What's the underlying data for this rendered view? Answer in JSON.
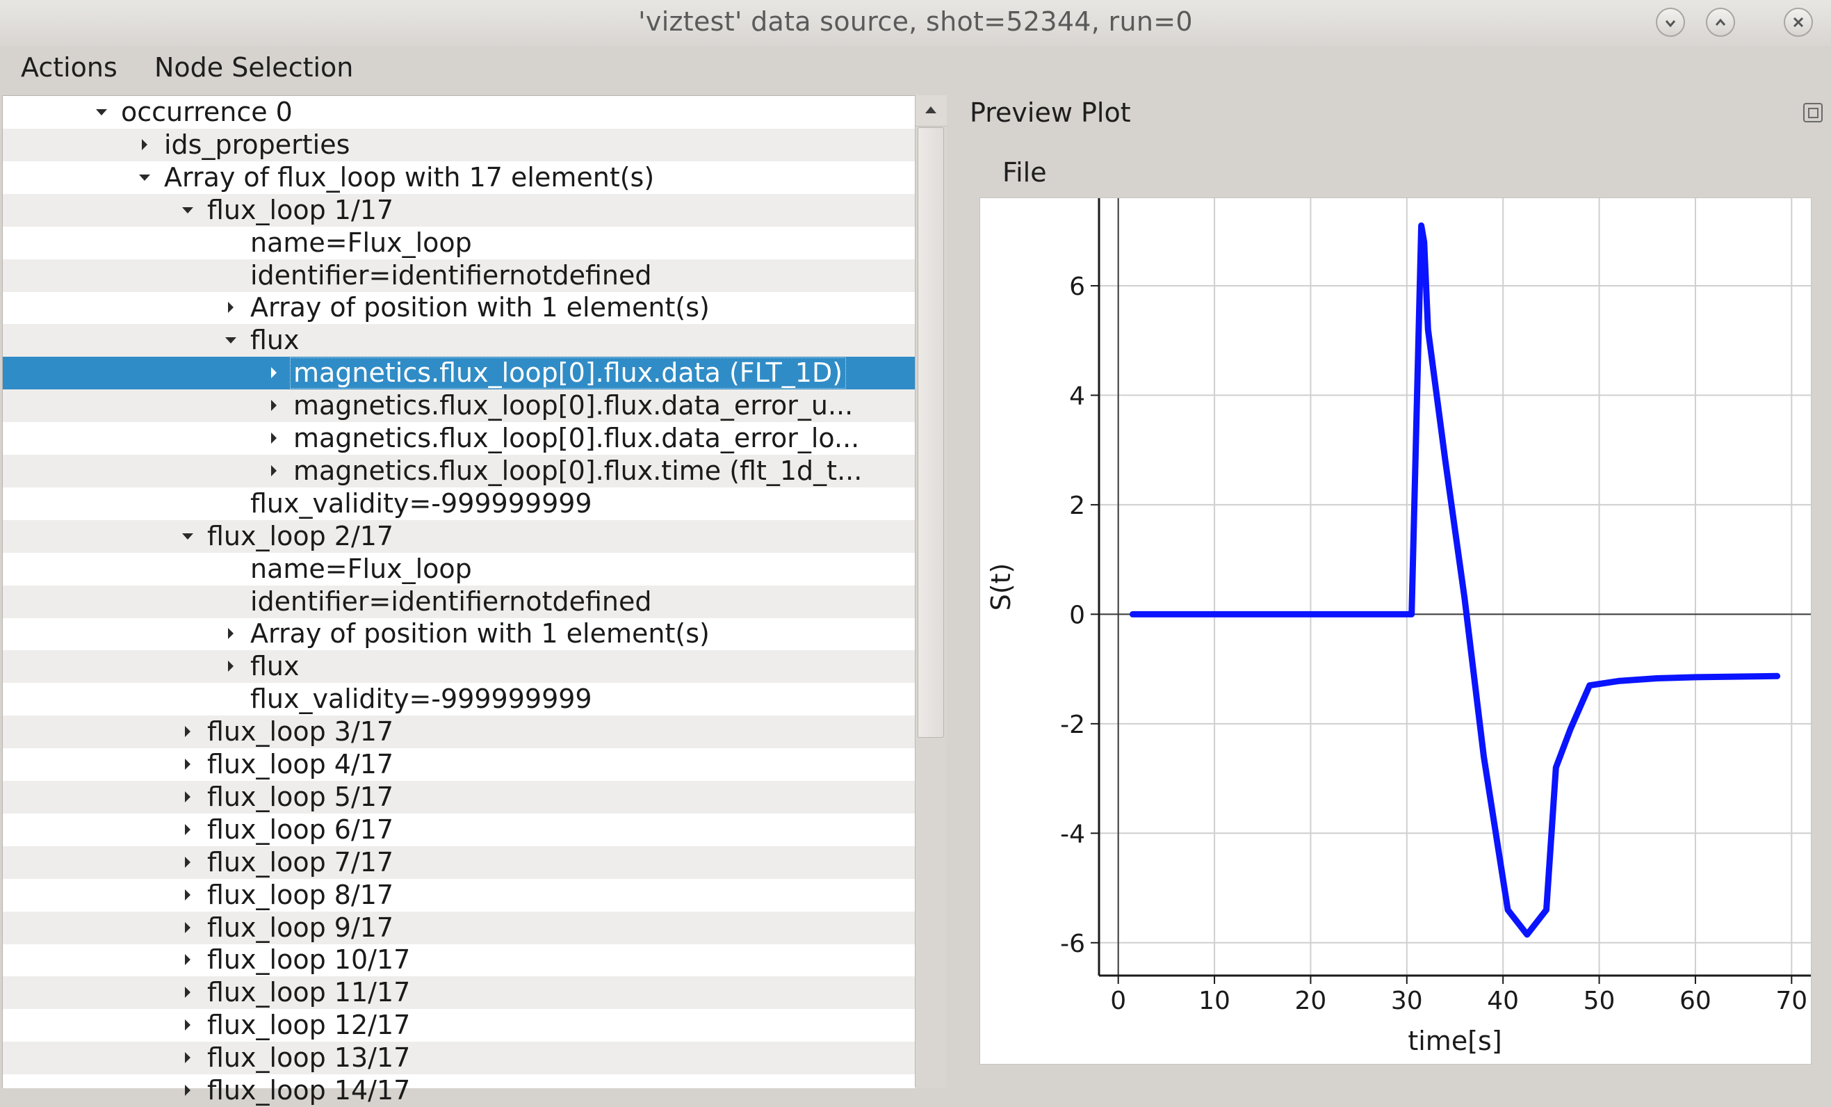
{
  "window": {
    "title": "'viztest' data source, shot=52344, run=0"
  },
  "menubar": {
    "items": [
      "Actions",
      "Node Selection"
    ]
  },
  "tree": {
    "rows": [
      {
        "text": "occurrence 0",
        "arrow": "down",
        "indent": 0
      },
      {
        "text": "ids_properties",
        "arrow": "right",
        "indent": 1
      },
      {
        "text": "Array of flux_loop with 17 element(s)",
        "arrow": "down",
        "indent": 1
      },
      {
        "text": "flux_loop 1/17",
        "arrow": "down",
        "indent": 2
      },
      {
        "text": "name=Flux_loop",
        "arrow": "none",
        "indent": 3
      },
      {
        "text": "identifier=identifiernotdefined",
        "arrow": "none",
        "indent": 3
      },
      {
        "text": "Array of position with 1 element(s)",
        "arrow": "right",
        "indent": 3
      },
      {
        "text": "flux",
        "arrow": "down",
        "indent": 3
      },
      {
        "text": "magnetics.flux_loop[0].flux.data (FLT_1D)",
        "arrow": "right",
        "indent": 4,
        "selected": true
      },
      {
        "text": "magnetics.flux_loop[0].flux.data_error_u...",
        "arrow": "right",
        "indent": 4
      },
      {
        "text": "magnetics.flux_loop[0].flux.data_error_lo...",
        "arrow": "right",
        "indent": 4
      },
      {
        "text": "magnetics.flux_loop[0].flux.time (flt_1d_t...",
        "arrow": "right",
        "indent": 4
      },
      {
        "text": "flux_validity=-999999999",
        "arrow": "none",
        "indent": 3
      },
      {
        "text": "flux_loop 2/17",
        "arrow": "down",
        "indent": 2
      },
      {
        "text": "name=Flux_loop",
        "arrow": "none",
        "indent": 3
      },
      {
        "text": "identifier=identifiernotdefined",
        "arrow": "none",
        "indent": 3
      },
      {
        "text": "Array of position with 1 element(s)",
        "arrow": "right",
        "indent": 3
      },
      {
        "text": "flux",
        "arrow": "right",
        "indent": 3
      },
      {
        "text": "flux_validity=-999999999",
        "arrow": "none",
        "indent": 3
      },
      {
        "text": "flux_loop 3/17",
        "arrow": "right",
        "indent": 2
      },
      {
        "text": "flux_loop 4/17",
        "arrow": "right",
        "indent": 2
      },
      {
        "text": "flux_loop 5/17",
        "arrow": "right",
        "indent": 2
      },
      {
        "text": "flux_loop 6/17",
        "arrow": "right",
        "indent": 2
      },
      {
        "text": "flux_loop 7/17",
        "arrow": "right",
        "indent": 2
      },
      {
        "text": "flux_loop 8/17",
        "arrow": "right",
        "indent": 2
      },
      {
        "text": "flux_loop 9/17",
        "arrow": "right",
        "indent": 2
      },
      {
        "text": "flux_loop 10/17",
        "arrow": "right",
        "indent": 2
      },
      {
        "text": "flux_loop 11/17",
        "arrow": "right",
        "indent": 2
      },
      {
        "text": "flux_loop 12/17",
        "arrow": "right",
        "indent": 2
      },
      {
        "text": "flux_loop 13/17",
        "arrow": "right",
        "indent": 2
      },
      {
        "text": "flux_loop 14/17",
        "arrow": "right",
        "indent": 2
      }
    ]
  },
  "preview": {
    "title": "Preview Plot",
    "file_menu": "File"
  },
  "colors": {
    "selection": "#308cc6",
    "series": "#0a14ff"
  },
  "chart_data": {
    "type": "line",
    "xlabel": "time[s]",
    "ylabel": "S(t)",
    "xlim": [
      -2,
      72
    ],
    "ylim": [
      -6.6,
      7.6
    ],
    "xticks": [
      0,
      10,
      20,
      30,
      40,
      50,
      60,
      70
    ],
    "yticks": [
      -6,
      -4,
      -2,
      0,
      2,
      4,
      6
    ],
    "grid": true,
    "series": [
      {
        "x": [
          1.5,
          10,
          20,
          29.5,
          30.5,
          31.5,
          31.8,
          32.2,
          34,
          36,
          38,
          40.5,
          42.5,
          44.5,
          45.5,
          47,
          49,
          52,
          56,
          60,
          64,
          68.5
        ],
        "y": [
          0,
          0,
          0,
          0,
          0,
          7.1,
          6.8,
          5.2,
          2.8,
          0.3,
          -2.6,
          -5.4,
          -5.85,
          -5.4,
          -2.8,
          -2.1,
          -1.3,
          -1.22,
          -1.17,
          -1.15,
          -1.14,
          -1.13
        ]
      }
    ]
  }
}
